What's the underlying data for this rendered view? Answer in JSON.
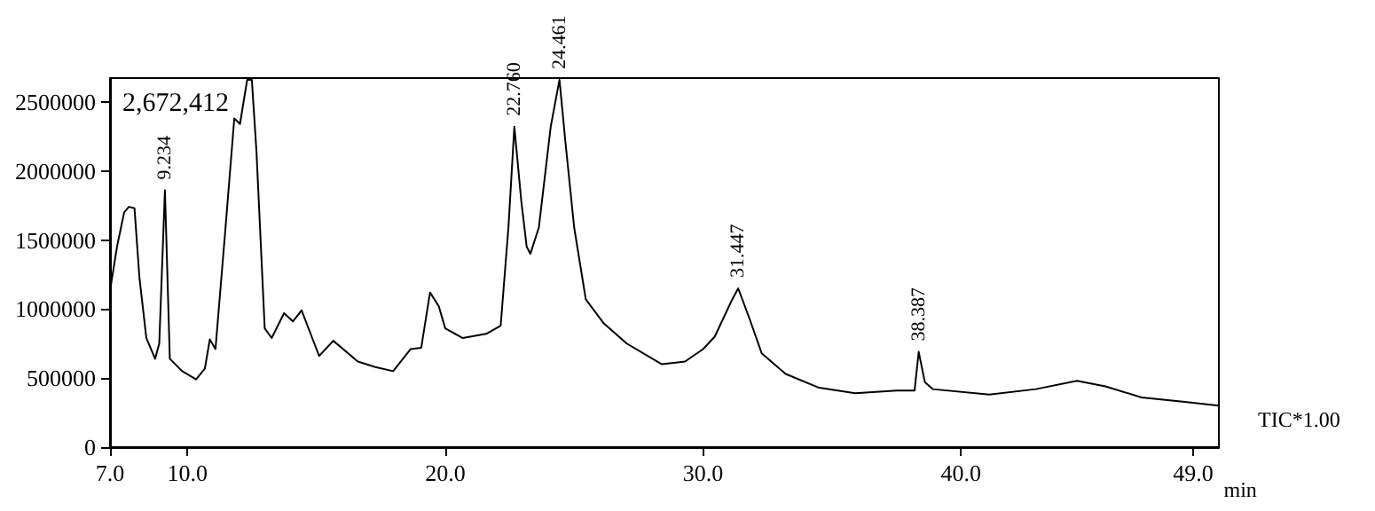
{
  "chart_data": {
    "type": "line",
    "xlabel": "min",
    "marker": "none",
    "grid": false,
    "legend": false,
    "xlim": [
      7,
      50
    ],
    "xticks": [
      {
        "value": 7,
        "label": "7.0"
      },
      {
        "value": 10,
        "label": "10.0"
      },
      {
        "value": 20,
        "label": "20.0"
      },
      {
        "value": 30,
        "label": "30.0"
      },
      {
        "value": 40,
        "label": "40.0"
      },
      {
        "value": 49,
        "label": "49.0"
      }
    ],
    "ylim": [
      0,
      2672412
    ],
    "yticks": [
      0,
      500000,
      1000000,
      1500000,
      2000000,
      2500000
    ],
    "series": [
      {
        "name": "TIC*1.00",
        "color": "#000000",
        "x": [
          7.0,
          7.27,
          7.55,
          7.73,
          7.95,
          8.14,
          8.41,
          8.75,
          8.91,
          9.13,
          9.32,
          9.8,
          10.34,
          10.68,
          10.87,
          11.09,
          11.48,
          11.82,
          12.04,
          12.32,
          12.5,
          12.68,
          13.0,
          13.27,
          13.75,
          14.09,
          14.43,
          15.11,
          15.66,
          16.61,
          17.29,
          17.98,
          18.66,
          19.07,
          19.41,
          19.75,
          20.0,
          20.68,
          21.59,
          22.15,
          22.45,
          22.68,
          22.95,
          23.16,
          23.3,
          23.63,
          24.09,
          24.43,
          24.66,
          25.0,
          25.45,
          26.13,
          27.04,
          28.4,
          29.3,
          30.0,
          30.45,
          31.13,
          31.36,
          31.8,
          32.27,
          33.2,
          34.5,
          35.9,
          37.5,
          38.2,
          38.36,
          38.6,
          38.9,
          41.1,
          42.9,
          44.5,
          45.6,
          47.0,
          48.6,
          50.0
        ],
        "values": [
          1130000,
          1450000,
          1700000,
          1740000,
          1730000,
          1230000,
          790000,
          640000,
          750000,
          1860000,
          640000,
          550000,
          490000,
          570000,
          780000,
          710000,
          1590000,
          2380000,
          2340000,
          2660000,
          2660000,
          2140000,
          860000,
          790000,
          970000,
          910000,
          990000,
          660000,
          770000,
          620000,
          580000,
          550000,
          710000,
          720000,
          1120000,
          1020000,
          860000,
          790000,
          820000,
          880000,
          1590000,
          2320000,
          1780000,
          1450000,
          1400000,
          1590000,
          2320000,
          2660000,
          2210000,
          1590000,
          1070000,
          900000,
          750000,
          600000,
          620000,
          710000,
          800000,
          1070000,
          1150000,
          930000,
          680000,
          530000,
          430000,
          390000,
          410000,
          410000,
          690000,
          470000,
          420000,
          380000,
          420000,
          480000,
          440000,
          360000,
          330000,
          300000
        ]
      }
    ],
    "annotations": [
      "2,672,412",
      {
        "text": "9.234",
        "x": 9.13,
        "y": 1860000
      },
      {
        "text": "22.760",
        "x": 22.68,
        "y": 2320000
      },
      {
        "text": "24.461",
        "x": 24.43,
        "y": 2660000
      },
      {
        "text": "31.447",
        "x": 31.36,
        "y": 1150000
      },
      {
        "text": "38.387",
        "x": 38.36,
        "y": 690000
      }
    ]
  }
}
